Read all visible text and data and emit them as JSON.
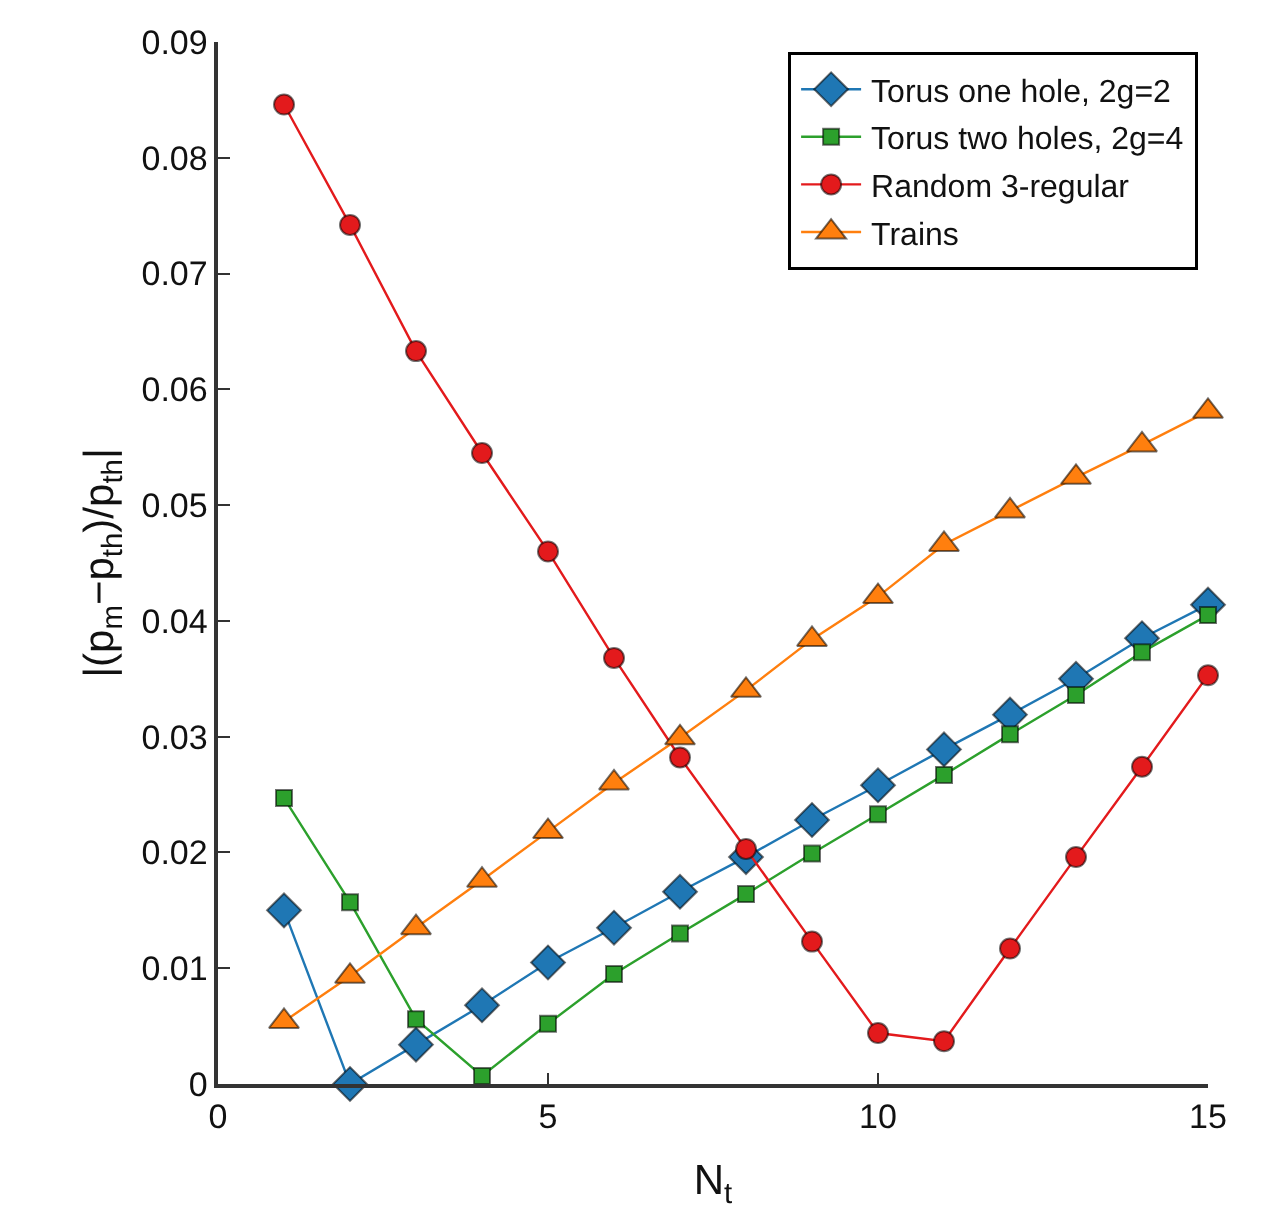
{
  "chart_data": {
    "type": "line",
    "xlabel": "N$_{t}$",
    "ylabel": "|(p$_{m}$−p$_{th}$)/p$_{th}$|",
    "x": [
      1,
      2,
      3,
      4,
      5,
      6,
      7,
      8,
      9,
      10,
      11,
      12,
      13,
      14,
      15
    ],
    "xlim": [
      0,
      15
    ],
    "xticks": [
      0,
      5,
      10,
      15
    ],
    "ylim": [
      0,
      0.09
    ],
    "yticks": [
      0,
      0.01,
      0.02,
      0.03,
      0.04,
      0.05,
      0.06,
      0.07,
      0.08,
      0.09
    ],
    "legend": "top right",
    "series": [
      {
        "name": "Torus one hole, 2g=2",
        "color": "#1f77b4",
        "marker": "diamond",
        "values": [
          0.015,
          0.0,
          0.0034,
          0.0068,
          0.0105,
          0.0135,
          0.0166,
          0.0196,
          0.0228,
          0.0258,
          0.0289,
          0.0319,
          0.035,
          0.0385,
          0.0414
        ]
      },
      {
        "name": "Torus two holes, 2g=4",
        "color": "#2ca02c",
        "marker": "square",
        "values": [
          0.0247,
          0.0157,
          0.0056,
          0.0007,
          0.0052,
          0.0095,
          0.013,
          0.0164,
          0.0199,
          0.0233,
          0.0267,
          0.0302,
          0.0336,
          0.0373,
          0.0405
        ]
      },
      {
        "name": "Random 3-regular",
        "color": "#e31a1c",
        "marker": "circle",
        "values": [
          0.0846,
          0.0742,
          0.0633,
          0.0545,
          0.046,
          0.0368,
          0.0282,
          0.0203,
          0.0123,
          0.0044,
          0.0037,
          0.0117,
          0.0196,
          0.0274,
          0.0353
        ]
      },
      {
        "name": "Trains",
        "color": "#ff7f0e",
        "marker": "triangle",
        "values": [
          0.0054,
          0.0093,
          0.0135,
          0.0176,
          0.0218,
          0.026,
          0.0299,
          0.034,
          0.0384,
          0.0421,
          0.0466,
          0.0495,
          0.0524,
          0.0552,
          0.0581
        ]
      }
    ]
  }
}
